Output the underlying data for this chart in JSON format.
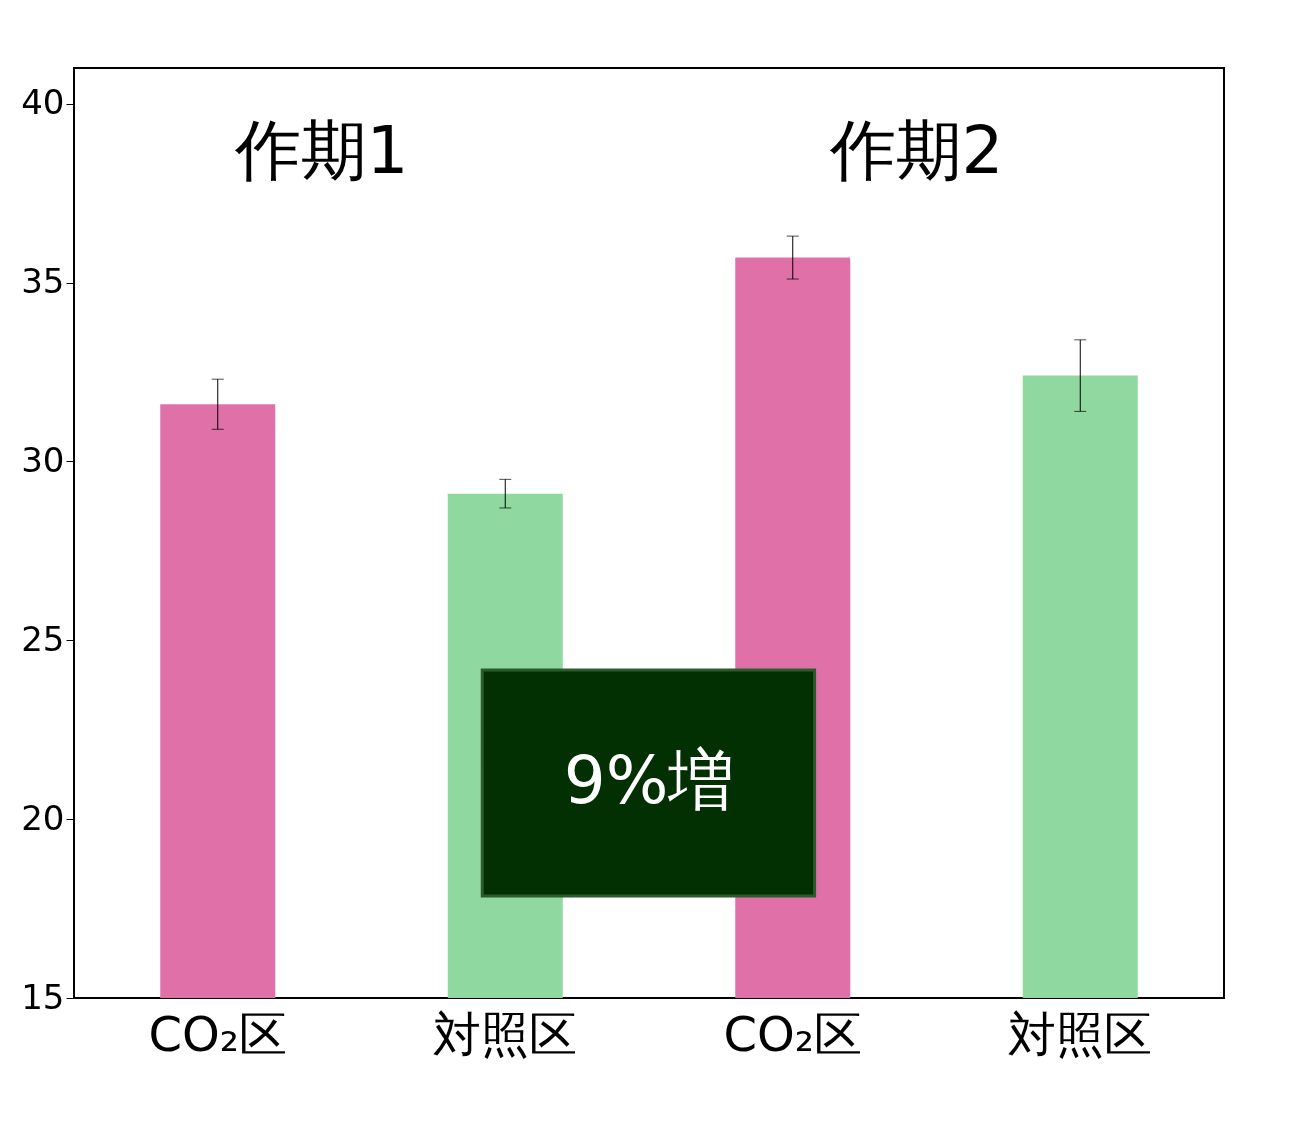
{
  "chart_data": {
    "type": "bar",
    "categories": [
      "CO₂区",
      "対照区",
      "CO₂区",
      "対照区"
    ],
    "values": [
      31.6,
      29.1,
      35.7,
      32.4
    ],
    "errors": [
      0.7,
      0.4,
      0.6,
      1.0
    ],
    "colors": [
      "#e070a8",
      "#8fd8a0",
      "#e070a8",
      "#8fd8a0"
    ],
    "ylim": [
      15,
      41
    ],
    "yticks": [
      15,
      20,
      25,
      30,
      35,
      40
    ],
    "grid": false,
    "annotations": [
      "作期1",
      "作期2",
      "9%増"
    ]
  }
}
